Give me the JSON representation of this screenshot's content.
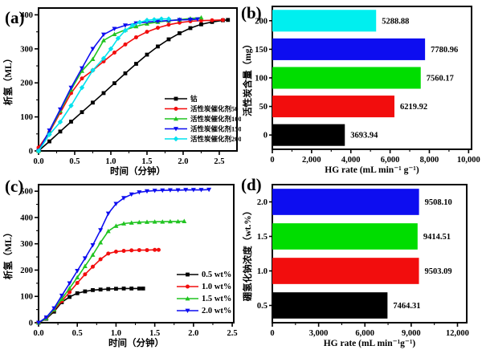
{
  "panels": [
    {
      "label": "(a)"
    },
    {
      "label": "(b)"
    },
    {
      "label": "(c)"
    },
    {
      "label": "(d)"
    }
  ],
  "chart_data": [
    {
      "id": "a",
      "type": "line",
      "xlabel": "时间（分钟）",
      "ylabel": "析氢（ML）",
      "xlim": [
        0,
        2.745
      ],
      "ylim": [
        0,
        420
      ],
      "xticks": [
        0,
        0.5,
        1.0,
        1.5,
        2.0,
        2.5
      ],
      "xtick_labels": [
        "0.0",
        "0.5",
        "1.0",
        "1.5",
        "2.0",
        "2.5"
      ],
      "yticks": [
        0,
        100,
        200,
        300,
        400
      ],
      "legend_position": "right-middle",
      "series": [
        {
          "name": "钴",
          "color": "#000000",
          "marker": "square",
          "x": [
            0,
            0.15,
            0.3,
            0.45,
            0.6,
            0.75,
            0.9,
            1.05,
            1.2,
            1.35,
            1.5,
            1.65,
            1.8,
            1.95,
            2.1,
            2.25,
            2.4,
            2.55,
            2.62
          ],
          "y": [
            0,
            28,
            57,
            86,
            114,
            142,
            170,
            199,
            228,
            256,
            283,
            307,
            328,
            346,
            361,
            372,
            379,
            384,
            385
          ]
        },
        {
          "name": "活性炭催化剂50",
          "color": "#f20d0d",
          "marker": "circle",
          "x": [
            0,
            0.15,
            0.3,
            0.45,
            0.6,
            0.75,
            0.9,
            1.05,
            1.2,
            1.35,
            1.5,
            1.65,
            1.8,
            1.95,
            2.1,
            2.25,
            2.4,
            2.55
          ],
          "y": [
            10,
            55,
            112,
            170,
            213,
            237,
            263,
            289,
            313,
            334,
            350,
            362,
            371,
            377,
            381,
            383,
            384,
            385
          ]
        },
        {
          "name": "活性炭催化剂100",
          "color": "#21c421",
          "marker": "triangle-up",
          "x": [
            0,
            0.15,
            0.3,
            0.45,
            0.6,
            0.75,
            0.9,
            1.05,
            1.2,
            1.35,
            1.5,
            1.65,
            1.8,
            1.95,
            2.1,
            2.25
          ],
          "y": [
            0,
            58,
            118,
            180,
            235,
            270,
            325,
            343,
            356,
            366,
            374,
            379,
            383,
            386,
            389,
            392
          ]
        },
        {
          "name": "活性炭催化剂150",
          "color": "#0d0df0",
          "marker": "triangle-down",
          "x": [
            0,
            0.15,
            0.3,
            0.45,
            0.6,
            0.75,
            0.9,
            1.05,
            1.2,
            1.35,
            1.5,
            1.65,
            1.8,
            1.95,
            2.1,
            2.2
          ],
          "y": [
            0,
            60,
            122,
            186,
            243,
            300,
            342,
            359,
            369,
            375,
            379,
            381,
            383,
            385,
            386,
            387
          ]
        },
        {
          "name": "活性炭催化剂200",
          "color": "#00e2ee",
          "marker": "diamond",
          "x": [
            0,
            0.15,
            0.3,
            0.45,
            0.6,
            0.75,
            0.9,
            1.0,
            1.1,
            1.2,
            1.3,
            1.4,
            1.5,
            1.6,
            1.7,
            1.8
          ],
          "y": [
            0,
            48,
            85,
            133,
            186,
            237,
            272,
            300,
            331,
            354,
            369,
            378,
            384,
            386,
            388,
            388
          ]
        }
      ]
    },
    {
      "id": "b",
      "type": "bar",
      "orientation": "horizontal",
      "order": "bottom-to-top",
      "xlabel": "HG rate (mL min⁻¹ g⁻¹)",
      "ylabel": "活性炭含量（mg）",
      "categories": [
        "0",
        "50",
        "100",
        "150",
        "200"
      ],
      "values": [
        3693.94,
        6219.92,
        7560.17,
        7780.96,
        5288.88
      ],
      "value_labels": [
        "3693.94",
        "6219.92",
        "7560.17",
        "7780.96",
        "5288.88"
      ],
      "bar_colors": [
        "#000000",
        "#f20d0d",
        "#00dd00",
        "#0d0df0",
        "#00efef"
      ],
      "xlim": [
        0,
        10150
      ],
      "xticks": [
        0,
        2000,
        4000,
        6000,
        8000,
        10000
      ]
    },
    {
      "id": "c",
      "type": "line",
      "xlabel": "时间（分钟）",
      "ylabel": "析氢（ML）",
      "xlim": [
        0,
        2.52
      ],
      "ylim": [
        0,
        525
      ],
      "xticks": [
        0,
        0.5,
        1.0,
        1.5,
        2.0,
        2.5
      ],
      "xtick_labels": [
        "0.0",
        "0.5",
        "1.0",
        "1.5",
        "2.0",
        "2.5"
      ],
      "yticks": [
        0,
        100,
        200,
        300,
        400,
        500
      ],
      "legend_position": "right-lower",
      "series": [
        {
          "name": "0.5 wt%",
          "color": "#000000",
          "marker": "square",
          "x": [
            0,
            0.1,
            0.2,
            0.3,
            0.4,
            0.5,
            0.6,
            0.7,
            0.8,
            0.9,
            1.0,
            1.1,
            1.2,
            1.3,
            1.35
          ],
          "y": [
            0,
            15,
            42,
            78,
            98,
            112,
            119,
            124,
            126,
            128,
            129,
            130,
            130,
            130,
            130
          ]
        },
        {
          "name": "1.0 wt%",
          "color": "#f20d0d",
          "marker": "circle",
          "x": [
            0,
            0.1,
            0.2,
            0.3,
            0.4,
            0.5,
            0.6,
            0.7,
            0.8,
            0.9,
            1.0,
            1.1,
            1.2,
            1.3,
            1.4,
            1.5,
            1.55
          ],
          "y": [
            0,
            17,
            48,
            82,
            116,
            151,
            184,
            213,
            241,
            263,
            270,
            273,
            275,
            276,
            276,
            277,
            277
          ]
        },
        {
          "name": "1.5 wt%",
          "color": "#21c421",
          "marker": "triangle-up",
          "x": [
            0,
            0.1,
            0.2,
            0.3,
            0.4,
            0.5,
            0.6,
            0.7,
            0.8,
            0.9,
            1.0,
            1.1,
            1.2,
            1.3,
            1.4,
            1.5,
            1.6,
            1.7,
            1.8,
            1.88
          ],
          "y": [
            0,
            17,
            50,
            90,
            131,
            172,
            215,
            258,
            305,
            348,
            368,
            377,
            380,
            382,
            383,
            384,
            384,
            385,
            385,
            386
          ]
        },
        {
          "name": "2.0 wt%",
          "color": "#0d0df0",
          "marker": "triangle-down",
          "x": [
            0,
            0.1,
            0.2,
            0.3,
            0.4,
            0.5,
            0.6,
            0.7,
            0.8,
            0.9,
            1.0,
            1.1,
            1.2,
            1.3,
            1.4,
            1.5,
            1.6,
            1.7,
            1.8,
            1.9,
            2.0,
            2.1,
            2.2
          ],
          "y": [
            0,
            20,
            55,
            103,
            150,
            197,
            245,
            295,
            352,
            415,
            452,
            474,
            488,
            496,
            500,
            502,
            503,
            504,
            504,
            505,
            505,
            505,
            506
          ]
        }
      ]
    },
    {
      "id": "d",
      "type": "bar",
      "orientation": "horizontal",
      "order": "bottom-to-top",
      "xlabel": "HG rate (mL min⁻¹g⁻¹)",
      "ylabel": "硼氢化钠浓度（wt.%）",
      "categories": [
        "0.5",
        "1.0",
        "1.5",
        "2.0"
      ],
      "values": [
        7464.31,
        9503.09,
        9414.51,
        9508.1
      ],
      "value_labels": [
        "7464.31",
        "9503.09",
        "9414.51",
        "9508.10"
      ],
      "bar_colors": [
        "#000000",
        "#f20d0d",
        "#00dd00",
        "#0d0df0"
      ],
      "xlim": [
        0,
        12600
      ],
      "xticks": [
        0,
        3000,
        6000,
        9000,
        12000
      ]
    }
  ]
}
